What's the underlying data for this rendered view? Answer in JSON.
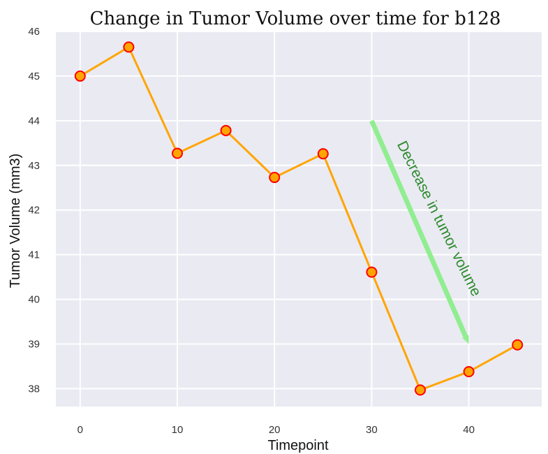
{
  "chart_data": {
    "type": "line",
    "title": "Change in Tumor Volume over time for b128",
    "xlabel": "Timepoint",
    "ylabel": "Tumor Volume (mm3)",
    "xlim": [
      -2.5,
      47.5
    ],
    "ylim": [
      37.6,
      46.0
    ],
    "xticks": [
      0,
      10,
      20,
      30,
      40
    ],
    "yticks": [
      38,
      39,
      40,
      41,
      42,
      43,
      44,
      45,
      46
    ],
    "grid": true,
    "series": [
      {
        "x": [
          0,
          5,
          10,
          15,
          20,
          25,
          30,
          35,
          40,
          45
        ],
        "values": [
          45.0,
          45.65,
          43.27,
          43.78,
          42.73,
          43.26,
          40.61,
          37.97,
          38.38,
          38.98
        ]
      }
    ],
    "annotation": {
      "text": "Decrease in tumor volume",
      "arrow_from": [
        30,
        44.0
      ],
      "arrow_to": [
        40,
        39.0
      ]
    },
    "colors": {
      "background": "#eaeaf2",
      "grid": "#ffffff",
      "line": "#ffa500",
      "marker_edge": "#ff0000",
      "arrow": "#90ee90",
      "annotation_text": "#2e8b2e"
    }
  }
}
